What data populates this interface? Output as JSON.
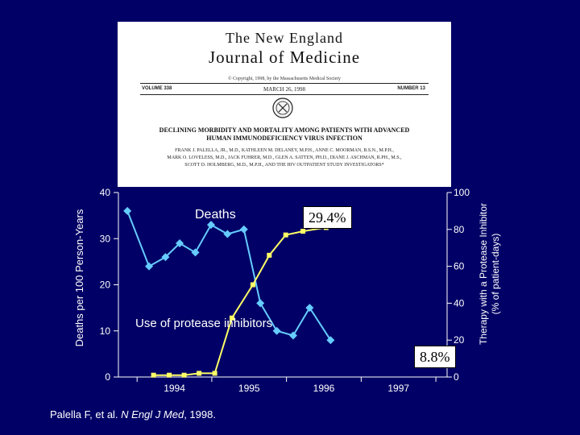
{
  "journal": {
    "name_line1": "The New England",
    "name_line2": "Journal of Medicine",
    "copyright": "© Copyright, 1998, by the Massachusetts Medical Society",
    "volume": "VOLUME 338",
    "date": "MARCH 26, 1998",
    "number": "NUMBER 13",
    "article_title_line1": "DECLINING MORBIDITY AND MORTALITY AMONG PATIENTS WITH ADVANCED",
    "article_title_line2": "HUMAN IMMUNODEFICIENCY VIRUS INFECTION",
    "authors_line1": "FRANK J. PALELLA, JR., M.D., KATHLEEN M. DELANEY, M.P.H., ANNE C. MOORMAN, B.S.N., M.P.H.,",
    "authors_line2": "MARK O. LOVELESS, M.D., JACK FUHRER, M.D., GLEN A. SATTEN, PH.D., DIANE J. ASCHMAN, R.PH., M.S.,",
    "authors_line3": "SCOTT D. HOLMBERG, M.D., M.P.H., AND THE HIV OUTPATIENT STUDY INVESTIGATORS*"
  },
  "labels": {
    "deaths": "Deaths",
    "protease": "Use of protease inhibitors",
    "callout_1": "29.4%",
    "callout_2": "8.8%"
  },
  "citation": {
    "prefix": "Palella F, et al. ",
    "journal": "N Engl J Med",
    "suffix": ", 1998."
  },
  "colors": {
    "background": "#000066",
    "deaths_series": "#66ccff",
    "protease_series": "#ffff66",
    "axis": "#ffffff"
  },
  "chart_data": {
    "type": "line",
    "ylabel": "Deaths per 100 Person-Years",
    "y2label_line1": "Therapy with a Protease Inhibitor",
    "y2label_line2": "(% of patient-days)",
    "x_tick_labels": [
      "1994",
      "1995",
      "1996",
      "1997"
    ],
    "xlim": [
      1993.5,
      1997.9
    ],
    "ylim": [
      0,
      40
    ],
    "y_ticks": [
      0,
      10,
      20,
      30,
      40
    ],
    "y2lim": [
      0,
      100
    ],
    "y2_ticks": [
      0,
      20,
      40,
      60,
      80,
      100
    ],
    "series": [
      {
        "name": "Deaths",
        "axis": "left",
        "x": [
          1993.62,
          1993.91,
          1994.13,
          1994.32,
          1994.53,
          1994.74,
          1994.96,
          1995.18,
          1995.4,
          1995.62,
          1995.84,
          1996.06,
          1996.34
        ],
        "y": [
          36,
          24,
          26,
          29,
          27,
          33,
          31,
          32,
          16,
          10,
          9,
          15,
          8
        ]
      },
      {
        "name": "Use of protease inhibitors",
        "axis": "right",
        "x": [
          1993.97,
          1994.18,
          1994.38,
          1994.58,
          1994.79,
          1995.02,
          1995.3,
          1995.52,
          1995.74,
          1995.97,
          1996.28
        ],
        "y": [
          1,
          1,
          1,
          2,
          2,
          32,
          50,
          66,
          77,
          79,
          81
        ]
      }
    ]
  }
}
